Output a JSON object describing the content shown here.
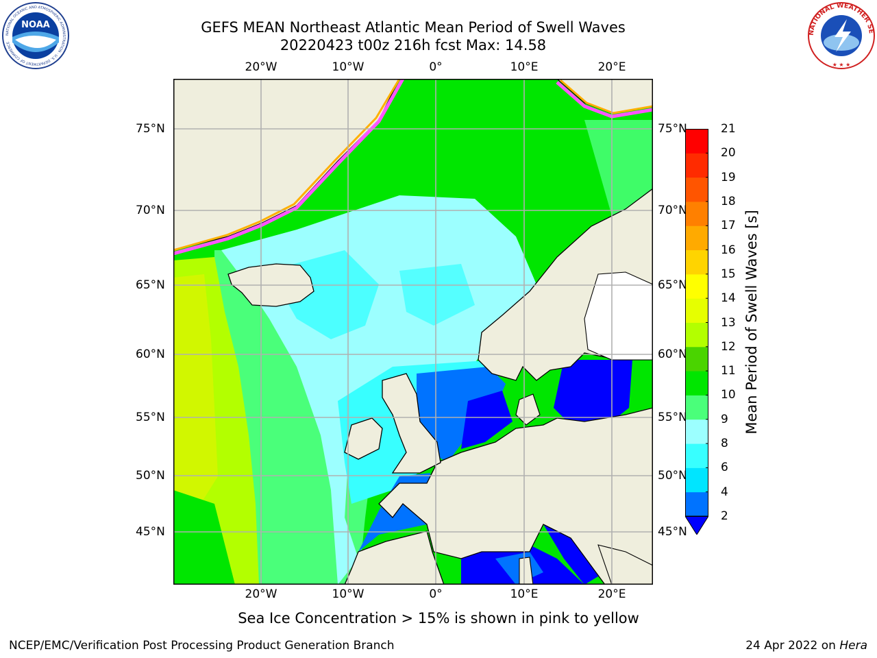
{
  "title_line1": "GEFS MEAN Northeast Atlantic Mean Period of Swell Waves",
  "title_line2": "20220423 t00z 216h fcst   Max: 14.58",
  "lon_labels": [
    "20°W",
    "10°W",
    "0°",
    "10°E",
    "20°E"
  ],
  "lat_labels": [
    "75°N",
    "70°N",
    "65°N",
    "60°N",
    "55°N",
    "50°N",
    "45°N"
  ],
  "colorbar": {
    "label": "Mean Period of Swell Waves [s]",
    "ticks": [
      "2",
      "4",
      "6",
      "8",
      "9",
      "10",
      "11",
      "12",
      "13",
      "14",
      "15",
      "16",
      "17",
      "18",
      "19",
      "20",
      "21"
    ],
    "colors": [
      "#0000ff",
      "#0073ff",
      "#00e5ff",
      "#38ffff",
      "#9cffff",
      "#4aff7a",
      "#00e600",
      "#4ad400",
      "#b3ff00",
      "#e6ff00",
      "#ffff00",
      "#ffd400",
      "#ffaa00",
      "#ff8000",
      "#ff5500",
      "#ff2b00",
      "#ff0000"
    ],
    "extend": "min"
  },
  "map_data": {
    "extent_lon": [
      -30,
      25
    ],
    "extent_lat": [
      41,
      78
    ],
    "gridlines": true,
    "max_value": 14.58,
    "land_color": "#efeedd",
    "ice_colors": [
      "#ff55ff",
      "#ffb000",
      "#ffee00"
    ]
  },
  "sea_ice_note": "Sea Ice Concentration > 15% is shown in pink to yellow",
  "footer_left": "NCEP/EMC/Verification Post Processing Product Generation Branch",
  "footer_right_date": "24 Apr 2022 on ",
  "footer_right_host": "Hera",
  "logos": {
    "left": {
      "icon": "noaa-logo",
      "text": "NOAA",
      "ring_text": "NATIONAL OCEANIC AND ATMOSPHERIC ADMINISTRATION · U.S. DEPARTMENT OF COMMERCE"
    },
    "right": {
      "icon": "nws-logo",
      "ring_text": "NATIONAL WEATHER SERVICE"
    }
  }
}
